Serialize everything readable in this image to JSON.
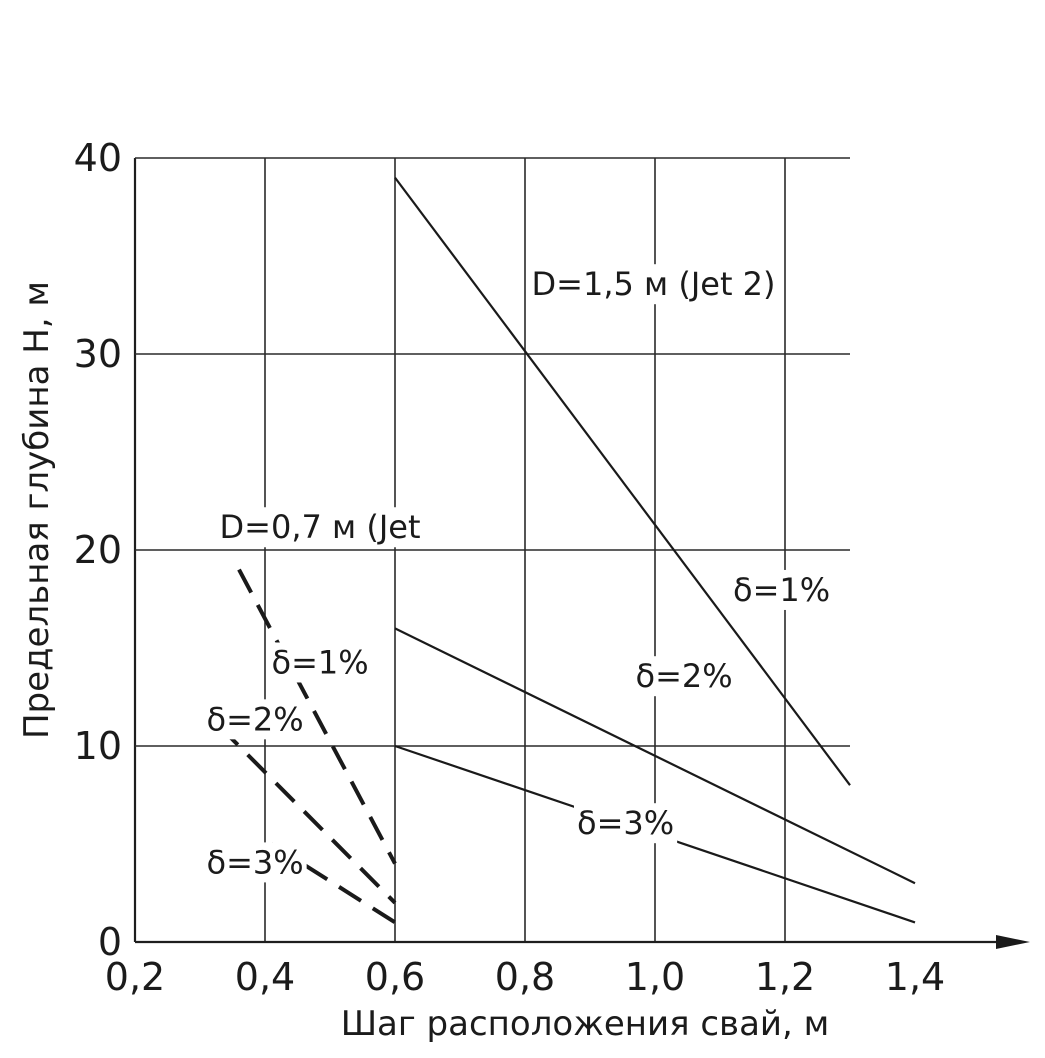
{
  "chart_data": {
    "type": "line",
    "xlabel": "Шаг расположения свай, м",
    "ylabel": "Предельная глубина H, м",
    "xlim": [
      0.2,
      1.4
    ],
    "ylim": [
      0,
      40
    ],
    "x_ticks": [
      "0,2",
      "0,4",
      "0,6",
      "0,8",
      "1,0",
      "1,2",
      "1,4"
    ],
    "y_ticks": [
      "0",
      "10",
      "20",
      "30",
      "40"
    ],
    "grid": true,
    "groups": [
      {
        "label": "D=1,5 м (Jet 2)",
        "style": "solid"
      },
      {
        "label": "D=0,7 м (Jet",
        "style": "dashed"
      }
    ],
    "series": [
      {
        "name": "δ=1%",
        "group": 0,
        "style": "solid",
        "x": [
          0.6,
          1.3
        ],
        "y": [
          39,
          8
        ]
      },
      {
        "name": "δ=2%",
        "group": 0,
        "style": "solid",
        "x": [
          0.6,
          1.4
        ],
        "y": [
          16,
          3
        ]
      },
      {
        "name": "δ=3%",
        "group": 0,
        "style": "solid",
        "x": [
          0.6,
          1.4
        ],
        "y": [
          10,
          1
        ]
      },
      {
        "name": "δ=1%",
        "group": 1,
        "style": "dashed",
        "x": [
          0.36,
          0.6
        ],
        "y": [
          19,
          4
        ]
      },
      {
        "name": "δ=2%",
        "group": 1,
        "style": "dashed",
        "x": [
          0.33,
          0.6
        ],
        "y": [
          11,
          2
        ]
      },
      {
        "name": "δ=3%",
        "group": 1,
        "style": "dashed",
        "x": [
          0.41,
          0.6
        ],
        "y": [
          5,
          1
        ]
      }
    ],
    "annotations": [
      {
        "text": "D=1,5 м (Jet 2)",
        "x": 0.81,
        "y": 33.0
      },
      {
        "text": "D=0,7 м (Jet",
        "x": 0.33,
        "y": 20.6
      },
      {
        "text": "δ=1%",
        "x": 1.12,
        "y": 17.4
      },
      {
        "text": "δ=2%",
        "x": 0.97,
        "y": 13.0
      },
      {
        "text": "δ=3%",
        "x": 0.88,
        "y": 5.5
      },
      {
        "text": "δ=1%",
        "x": 0.41,
        "y": 13.7
      },
      {
        "text": "δ=2%",
        "x": 0.31,
        "y": 10.8
      },
      {
        "text": "δ=3%",
        "x": 0.31,
        "y": 3.5
      }
    ]
  }
}
